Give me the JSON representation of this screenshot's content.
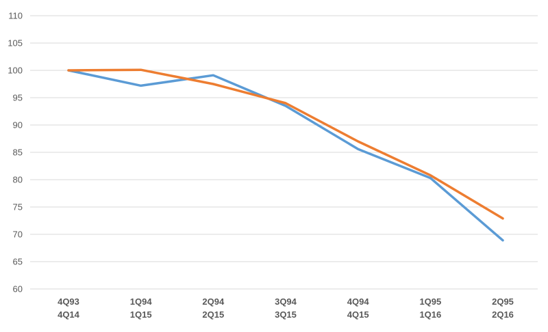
{
  "chart_data": {
    "type": "line",
    "categories": [
      [
        "4Q93",
        "4Q14"
      ],
      [
        "1Q94",
        "1Q15"
      ],
      [
        "2Q94",
        "2Q15"
      ],
      [
        "3Q94",
        "3Q15"
      ],
      [
        "4Q94",
        "4Q15"
      ],
      [
        "1Q95",
        "1Q16"
      ],
      [
        "2Q95",
        "2Q16"
      ]
    ],
    "series": [
      {
        "color": "#5b9bd5",
        "values": [
          100,
          97.2,
          99.1,
          93.5,
          85.6,
          80.3,
          68.9
        ]
      },
      {
        "color": "#ed7d31",
        "values": [
          100,
          100.1,
          97.5,
          94.0,
          87.0,
          80.8,
          72.9
        ]
      }
    ],
    "ylim": [
      60,
      110
    ],
    "yticks": [
      110,
      105,
      100,
      95,
      90,
      85,
      80,
      75,
      70,
      65,
      60
    ],
    "grid": true,
    "legend": "none"
  }
}
